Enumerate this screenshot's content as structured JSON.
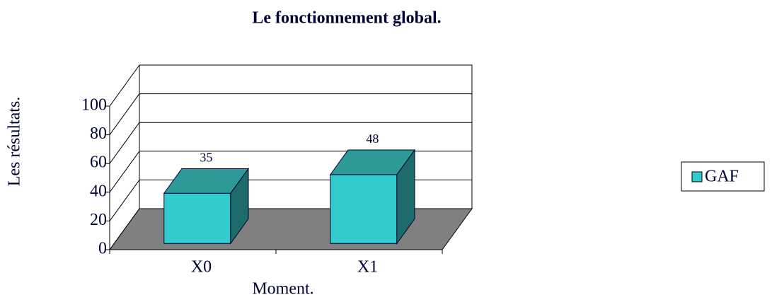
{
  "chart_data": {
    "type": "bar3d",
    "title": "Le fonctionnement global.",
    "xlabel": "Moment.",
    "ylabel": "Les résultats.",
    "categories": [
      "X0",
      "X1"
    ],
    "series": [
      {
        "name": "GAF",
        "color": "#33cccc",
        "values": [
          35,
          48
        ]
      }
    ],
    "ylim": [
      0,
      100
    ],
    "yticks": [
      0,
      20,
      40,
      60,
      80,
      100
    ],
    "grid": true,
    "legend": "right"
  }
}
